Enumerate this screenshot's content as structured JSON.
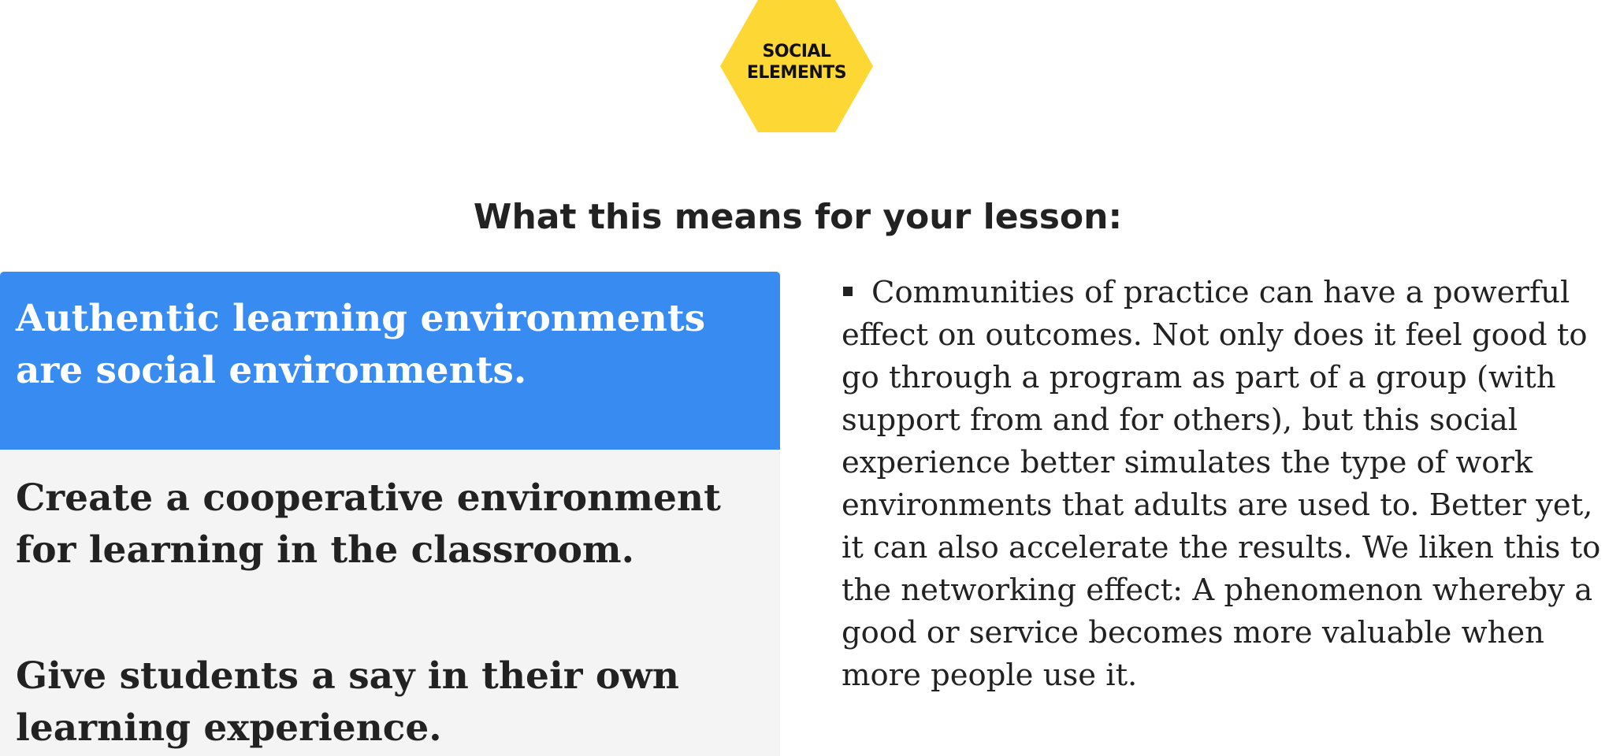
{
  "badge": {
    "text": "SOCIAL\nELEMENTS",
    "color": "#fdd835"
  },
  "heading": "What this means for your lesson:",
  "tabs": [
    {
      "label": "Authentic learning environments are social environments.",
      "active": true
    },
    {
      "label": "Create a cooperative environment for learning in the classroom.",
      "active": false
    },
    {
      "label": "Give students a say in their own learning experience.",
      "active": false
    }
  ],
  "content": {
    "bullet_icon": "square-bullet-icon",
    "text": "Communities of practice can have a powerful effect on outcomes. Not only does it feel good to go through a program as part of a group (with support from and for others), but this social experience better simulates the type of work environments that adults are used to. Better yet, it can also accelerate the results. We liken this to the networking effect: A phenomenon whereby a good or service becomes more valuable when more people use it."
  },
  "colors": {
    "accent": "#388cf1",
    "panel_background": "#f4f4f4",
    "text": "#222222"
  }
}
